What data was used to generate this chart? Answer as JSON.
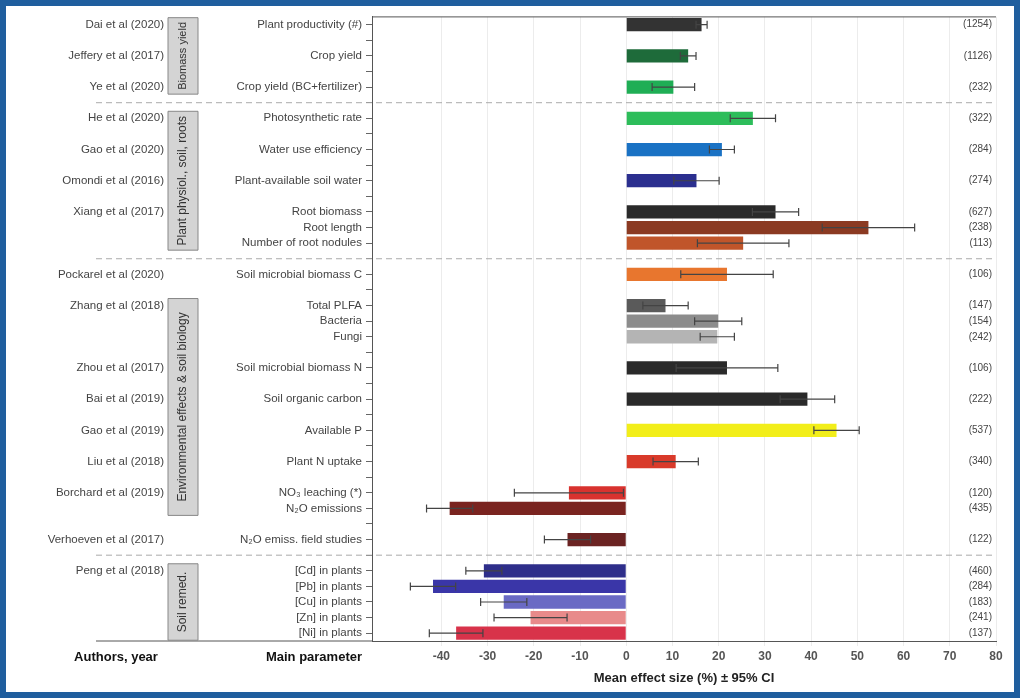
{
  "chart_data": {
    "type": "bar",
    "orientation": "horizontal",
    "xlabel": "Mean effect size (%) ± 95% CI",
    "categories": [
      "Plant productivity (#)",
      null,
      "Crop yield",
      null,
      "Crop yield (BC+fertilizer)",
      null,
      "Photosynthetic rate",
      null,
      "Water use efficiency",
      null,
      "Plant-available soil water",
      null,
      "Root biomass",
      "Root length",
      "Number of root nodules",
      null,
      "Soil microbial biomass C",
      null,
      "Total PLFA",
      "Bacteria",
      "Fungi",
      null,
      "Soil microbial biomass N",
      null,
      "Soil organic carbon",
      null,
      "Available P",
      null,
      "Plant N uptake",
      null,
      "NO₃ leaching (*)",
      "N₂O emissions",
      null,
      "N₂O emiss. field studies",
      null,
      "[Cd] in plants",
      "[Pb] in plants",
      "[Cu] in plants",
      "[Zn] in plants",
      "[Ni] in plants"
    ],
    "values": [
      16.3,
      null,
      13.4,
      null,
      10.2,
      null,
      27.4,
      null,
      20.7,
      null,
      15.2,
      null,
      32.3,
      52.4,
      25.3,
      null,
      21.8,
      null,
      8.5,
      19.9,
      19.7,
      null,
      21.8,
      null,
      39.2,
      null,
      45.5,
      null,
      10.7,
      null,
      -12.4,
      -38.2,
      null,
      -12.7,
      null,
      -30.8,
      -41.8,
      -26.5,
      -20.7,
      -36.8
    ],
    "errors": [
      1.2,
      null,
      1.7,
      null,
      4.6,
      null,
      4.9,
      null,
      2.7,
      null,
      4.9,
      null,
      5,
      10,
      9.9,
      null,
      10,
      null,
      4.9,
      5.1,
      3.7,
      null,
      11,
      null,
      5.9,
      null,
      4.9,
      null,
      4.9,
      null,
      11.8,
      5,
      null,
      5,
      null,
      3.9,
      4.9,
      5,
      7.9,
      5.8
    ],
    "colors": [
      "#333333",
      null,
      "#1e6b3a",
      null,
      "#1fae55",
      null,
      "#2dbd5a",
      null,
      "#1a72c4",
      null,
      "#2b2f8f",
      null,
      "#2a2a2a",
      "#8b3a22",
      "#c0552a",
      null,
      "#e8762e",
      null,
      "#5a5a5a",
      "#8c8c8c",
      "#b4b4b4",
      null,
      "#2a2a2a",
      null,
      "#2a2a2a",
      null,
      "#f2ee1a",
      null,
      "#d93a2a",
      null,
      "#d8322e",
      "#7a2420",
      null,
      "#6b2322",
      null,
      "#2e2e8a",
      "#3a36a8",
      "#6a6ac4",
      "#e88a8a",
      "#d8334a"
    ],
    "xlim": [
      -55,
      80
    ],
    "xticks": [
      -40,
      -30,
      -20,
      -10,
      0,
      10,
      20,
      30,
      40,
      50,
      60,
      70,
      80
    ],
    "grid": "x",
    "legend": false,
    "annotations": [
      "Authors, year",
      "Main parameter",
      "Biomass yield",
      "Plant physiol., soil, roots",
      "Environmental effects & soil biology",
      "Soil remed.",
      "Dai et al (2020)",
      "Jeffery et al (2017)",
      "Ye et al (2020)",
      "He et al (2020)",
      "Gao et al (2020)",
      "Omondi et al (2016)",
      "Xiang et al (2017)",
      "Pockarel et al (2020)",
      "Zhang et al (2018)",
      "Zhou et al (2017)",
      "Bai et al (2019)",
      "Gao et al (2019)",
      "Liu et al (2018)",
      "Borchard et al (2019)",
      "Verhoeven et al (2017)",
      "Peng et al (2018)",
      "(1254)",
      "(1126)",
      "(232)",
      "(322)",
      "(284)",
      "(274)",
      "(627)",
      "(238)",
      "(113)",
      "(106)",
      "(147)",
      "(154)",
      "(242)",
      "(106)",
      "(222)",
      "(537)",
      "(340)",
      "(120)",
      "(435)",
      "(122)",
      "(460)",
      "(284)",
      "(183)",
      "(241)",
      "(137)"
    ]
  }
}
